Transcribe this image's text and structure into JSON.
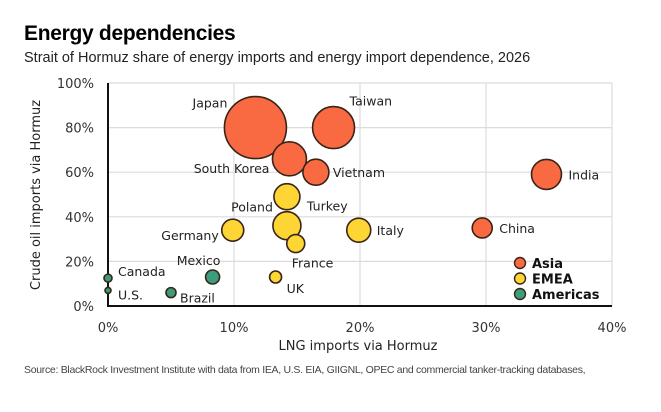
{
  "chart_data": {
    "type": "scatter",
    "title": "Energy dependencies",
    "subtitle": "Strait of Hormuz share of energy imports and energy import dependence, 2026",
    "xlabel": "LNG imports via Hormuz",
    "ylabel": "Crude oil imports via Hormuz",
    "xlim": [
      0,
      40
    ],
    "ylim": [
      0,
      100
    ],
    "x_ticks": [
      "0%",
      "10%",
      "20%",
      "30%",
      "40%"
    ],
    "y_ticks": [
      "0%",
      "20%",
      "40%",
      "60%",
      "80%",
      "100%"
    ],
    "x_tick_values": [
      0,
      10,
      20,
      30,
      40
    ],
    "y_tick_values": [
      0,
      20,
      40,
      60,
      80,
      100
    ],
    "grid": true,
    "legend_position": "bottom-right",
    "size_encoding": "energy import dependence (relative bubble size)",
    "groups": [
      {
        "name": "Asia",
        "color": "#F96A43"
      },
      {
        "name": "EMEA",
        "color": "#FDD535"
      },
      {
        "name": "Americas",
        "color": "#3A9E7C"
      }
    ],
    "points": [
      {
        "label": "Japan",
        "group": "Asia",
        "x": 11.7,
        "y": 80,
        "size": 31
      },
      {
        "label": "Taiwan",
        "group": "Asia",
        "x": 17.9,
        "y": 80,
        "size": 21
      },
      {
        "label": "South Korea",
        "group": "Asia",
        "x": 14.4,
        "y": 66,
        "size": 17
      },
      {
        "label": "Vietnam",
        "group": "Asia",
        "x": 16.5,
        "y": 60,
        "size": 13
      },
      {
        "label": "India",
        "group": "Asia",
        "x": 34.8,
        "y": 59,
        "size": 15
      },
      {
        "label": "China",
        "group": "Asia",
        "x": 29.7,
        "y": 35,
        "size": 10
      },
      {
        "label": "Turkey",
        "group": "EMEA",
        "x": 14.2,
        "y": 49,
        "size": 13
      },
      {
        "label": "Poland",
        "group": "EMEA",
        "x": 14.2,
        "y": 36,
        "size": 14
      },
      {
        "label": "Germany",
        "group": "EMEA",
        "x": 9.9,
        "y": 34,
        "size": 11
      },
      {
        "label": "France",
        "group": "EMEA",
        "x": 14.9,
        "y": 28,
        "size": 9
      },
      {
        "label": "Italy",
        "group": "EMEA",
        "x": 19.9,
        "y": 34,
        "size": 12
      },
      {
        "label": "UK",
        "group": "EMEA",
        "x": 13.3,
        "y": 13,
        "size": 6
      },
      {
        "label": "Mexico",
        "group": "Americas",
        "x": 8.3,
        "y": 13,
        "size": 7
      },
      {
        "label": "Brazil",
        "group": "Americas",
        "x": 5.0,
        "y": 6,
        "size": 5
      },
      {
        "label": "Canada",
        "group": "Americas",
        "x": 0,
        "y": 12.5,
        "size": 4
      },
      {
        "label": "U.S.",
        "group": "Americas",
        "x": 0,
        "y": 7,
        "size": 3
      }
    ]
  },
  "source": "Source: BlackRock Investment Institute with data from IEA, U.S. EIA, GIIGNL, OPEC and commercial tanker-tracking databases,"
}
